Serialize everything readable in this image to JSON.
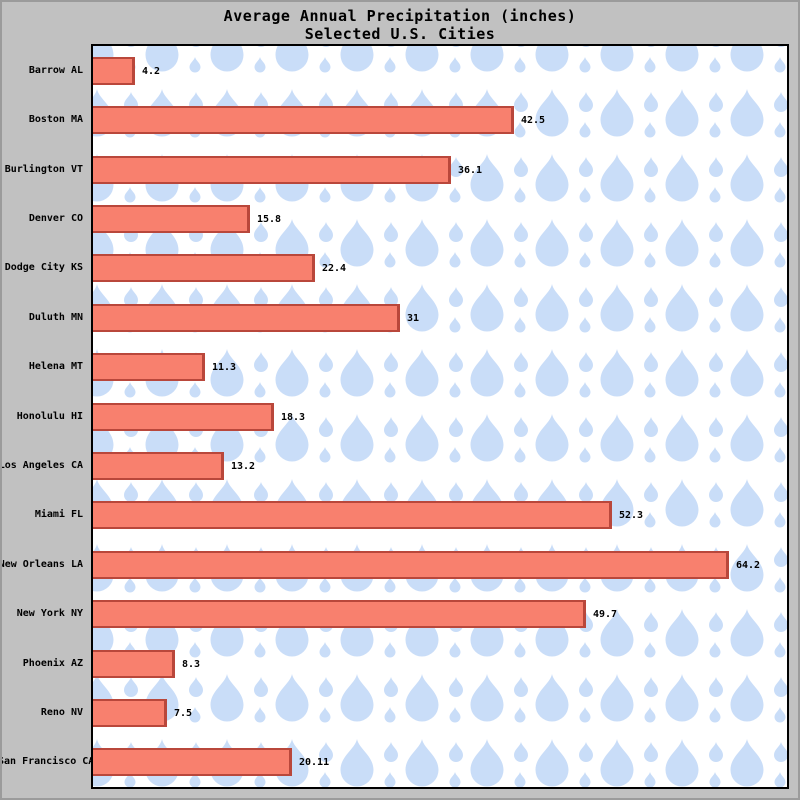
{
  "title": {
    "line1": "Average Annual Precipitation (inches)",
    "line2": "Selected U.S. Cities"
  },
  "chart_data": {
    "type": "bar",
    "orientation": "horizontal",
    "title": "Average Annual Precipitation (inches)",
    "subtitle": "Selected U.S. Cities",
    "categories": [
      "Barrow AL",
      "Boston MA",
      "Burlington VT",
      "Denver CO",
      "Dodge City KS",
      "Duluth MN",
      "Helena MT",
      "Honolulu HI",
      "Los Angeles CA",
      "Miami FL",
      "New Orleans LA",
      "New York NY",
      "Phoenix AZ",
      "Reno NV",
      "San Francisco CA"
    ],
    "values": [
      4.2,
      42.5,
      36.1,
      15.8,
      22.4,
      31,
      11.3,
      18.3,
      13.2,
      52.3,
      64.2,
      49.7,
      8.3,
      7.5,
      20.11
    ],
    "value_labels": [
      "4.2",
      "42.5",
      "36.1",
      "15.8",
      "22.4",
      "31",
      "11.3",
      "18.3",
      "13.2",
      "52.3",
      "64.2",
      "49.7",
      "8.3",
      "7.5",
      "20.11"
    ],
    "xlabel": "",
    "ylabel": "",
    "xlim": [
      0,
      70
    ],
    "grid": false,
    "legend": null,
    "background_pattern": "raindrops",
    "colors": {
      "outer_bg": "#C1C1C1",
      "outer_border": "#9B9B9B",
      "plot_bg": "#FFFFFF",
      "plot_border": "#000000",
      "raindrop": "#C9DDF8",
      "bar_fill": "#F8806E",
      "bar_border": "#B9473B",
      "text": "#000000"
    }
  }
}
